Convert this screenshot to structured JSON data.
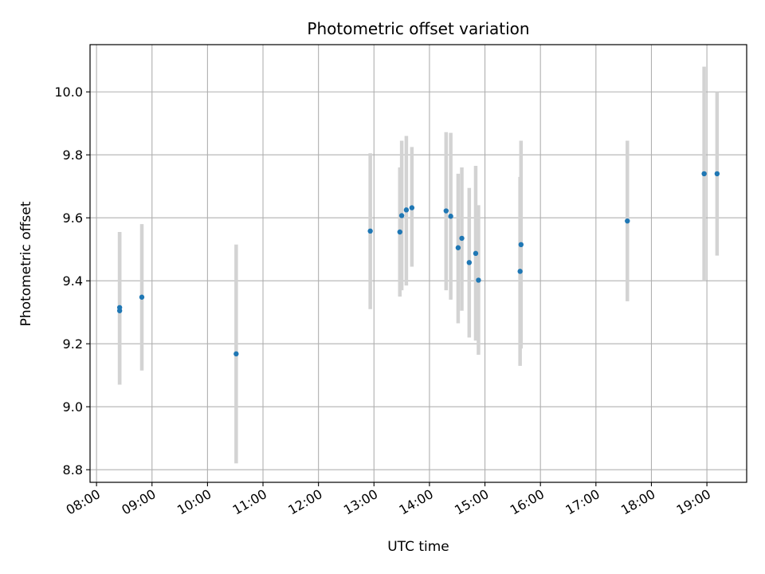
{
  "chart_data": {
    "type": "scatter",
    "title": "Photometric offset variation",
    "xlabel": "UTC time",
    "ylabel": "Photometric offset",
    "xlim": [
      "07:53",
      "19:43"
    ],
    "ylim": [
      8.76,
      10.15
    ],
    "x_ticks": [
      "08:00",
      "09:00",
      "10:00",
      "11:00",
      "12:00",
      "13:00",
      "14:00",
      "15:00",
      "16:00",
      "17:00",
      "18:00",
      "19:00"
    ],
    "y_ticks": [
      "8.8",
      "9.0",
      "9.2",
      "9.4",
      "9.6",
      "9.8",
      "10.0"
    ],
    "grid": true,
    "point_color": "#1f77b4",
    "errorbar_color": "#d3d3d3",
    "points": [
      {
        "x": "08:25",
        "y": 9.315,
        "err_low": 9.07,
        "err_high": 9.555
      },
      {
        "x": "08:25",
        "y": 9.305,
        "err_low": 9.07,
        "err_high": 9.555
      },
      {
        "x": "08:49",
        "y": 9.348,
        "err_low": 9.115,
        "err_high": 9.58
      },
      {
        "x": "10:31",
        "y": 9.168,
        "err_low": 8.82,
        "err_high": 9.515
      },
      {
        "x": "12:56",
        "y": 9.558,
        "err_low": 9.31,
        "err_high": 9.805
      },
      {
        "x": "13:28",
        "y": 9.555,
        "err_low": 9.35,
        "err_high": 9.76
      },
      {
        "x": "13:30",
        "y": 9.607,
        "err_low": 9.37,
        "err_high": 9.845
      },
      {
        "x": "13:35",
        "y": 9.625,
        "err_low": 9.385,
        "err_high": 9.86
      },
      {
        "x": "13:41",
        "y": 9.632,
        "err_low": 9.445,
        "err_high": 9.825
      },
      {
        "x": "14:18",
        "y": 9.622,
        "err_low": 9.37,
        "err_high": 9.872
      },
      {
        "x": "14:23",
        "y": 9.605,
        "err_low": 9.34,
        "err_high": 9.87
      },
      {
        "x": "14:31",
        "y": 9.505,
        "err_low": 9.265,
        "err_high": 9.74
      },
      {
        "x": "14:35",
        "y": 9.535,
        "err_low": 9.305,
        "err_high": 9.76
      },
      {
        "x": "14:43",
        "y": 9.458,
        "err_low": 9.22,
        "err_high": 9.695
      },
      {
        "x": "14:50",
        "y": 9.487,
        "err_low": 9.21,
        "err_high": 9.765
      },
      {
        "x": "14:53",
        "y": 9.402,
        "err_low": 9.165,
        "err_high": 9.64
      },
      {
        "x": "15:38",
        "y": 9.43,
        "err_low": 9.13,
        "err_high": 9.73
      },
      {
        "x": "15:39",
        "y": 9.515,
        "err_low": 9.185,
        "err_high": 9.845
      },
      {
        "x": "17:34",
        "y": 9.59,
        "err_low": 9.335,
        "err_high": 9.845
      },
      {
        "x": "18:57",
        "y": 9.74,
        "err_low": 9.4,
        "err_high": 10.08
      },
      {
        "x": "19:11",
        "y": 9.74,
        "err_low": 9.48,
        "err_high": 10.0
      }
    ]
  }
}
